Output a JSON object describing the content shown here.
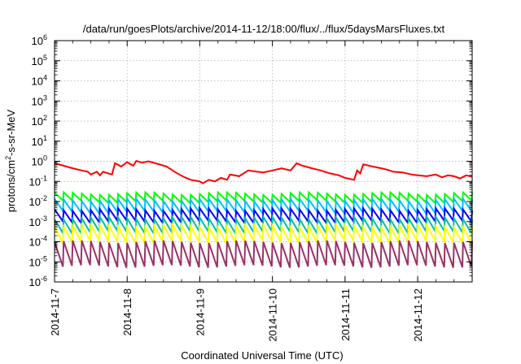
{
  "chart_data": {
    "type": "line",
    "title": "/data/run/goesPlots/archive/2014-11-12/18:00/flux/../flux/5daysMarsFluxes.txt",
    "xlabel": "Coordinated Universal Time (UTC)",
    "ylabel": {
      "pre": "protons/cm",
      "sup": "2",
      "post": "-s-sr-MeV"
    },
    "x_range": [
      "2014-11-07T00:00",
      "2014-11-12T18:00"
    ],
    "x_ticks": [
      "2014-11-7",
      "2014-11-8",
      "2014-11-9",
      "2014-11-10",
      "2014-11-11",
      "2014-11-12"
    ],
    "y_scale": "log",
    "y_range": [
      1e-06,
      1000000.0
    ],
    "y_ticks": [
      {
        "base": "10",
        "exp": "-6"
      },
      {
        "base": "10",
        "exp": "-5"
      },
      {
        "base": "10",
        "exp": "-4"
      },
      {
        "base": "10",
        "exp": "-3"
      },
      {
        "base": "10",
        "exp": "-2"
      },
      {
        "base": "10",
        "exp": "-1"
      },
      {
        "base": "10",
        "exp": "0"
      },
      {
        "base": "10",
        "exp": "1"
      },
      {
        "base": "10",
        "exp": "2"
      },
      {
        "base": "10",
        "exp": "3"
      },
      {
        "base": "10",
        "exp": "4"
      },
      {
        "base": "10",
        "exp": "5"
      },
      {
        "base": "10",
        "exp": "6"
      }
    ],
    "grid": true,
    "legend": "none",
    "series": [
      {
        "color": "#ff0000",
        "points": [
          [
            "2014-11-07T00:00",
            0.8
          ],
          [
            "2014-11-07T03:00",
            0.6
          ],
          [
            "2014-11-07T06:00",
            0.45
          ],
          [
            "2014-11-07T09:00",
            0.35
          ],
          [
            "2014-11-07T11:00",
            0.3
          ],
          [
            "2014-11-07T12:00",
            0.22
          ],
          [
            "2014-11-07T14:00",
            0.3
          ],
          [
            "2014-11-07T15:00",
            0.2
          ],
          [
            "2014-11-07T16:00",
            0.3
          ],
          [
            "2014-11-07T19:00",
            0.22
          ],
          [
            "2014-11-07T20:00",
            0.8
          ],
          [
            "2014-11-07T22:00",
            0.55
          ],
          [
            "2014-11-08T00:00",
            0.9
          ],
          [
            "2014-11-08T02:00",
            0.6
          ],
          [
            "2014-11-08T03:00",
            1.05
          ],
          [
            "2014-11-08T05:00",
            0.85
          ],
          [
            "2014-11-08T07:00",
            1.0
          ],
          [
            "2014-11-08T10:00",
            0.75
          ],
          [
            "2014-11-08T13:00",
            0.55
          ],
          [
            "2014-11-08T16:00",
            0.28
          ],
          [
            "2014-11-08T19:00",
            0.16
          ],
          [
            "2014-11-08T21:00",
            0.12
          ],
          [
            "2014-11-09T00:00",
            0.1
          ],
          [
            "2014-11-09T01:00",
            0.08
          ],
          [
            "2014-11-09T03:00",
            0.12
          ],
          [
            "2014-11-09T05:00",
            0.1
          ],
          [
            "2014-11-09T07:00",
            0.15
          ],
          [
            "2014-11-09T09:00",
            0.12
          ],
          [
            "2014-11-09T10:00",
            0.22
          ],
          [
            "2014-11-09T13:00",
            0.18
          ],
          [
            "2014-11-09T16:00",
            0.35
          ],
          [
            "2014-11-09T19:00",
            0.3
          ],
          [
            "2014-11-09T21:00",
            0.28
          ],
          [
            "2014-11-10T00:00",
            0.35
          ],
          [
            "2014-11-10T03:00",
            0.45
          ],
          [
            "2014-11-10T06:00",
            0.35
          ],
          [
            "2014-11-10T08:00",
            0.8
          ],
          [
            "2014-11-10T10:00",
            0.6
          ],
          [
            "2014-11-10T13:00",
            0.45
          ],
          [
            "2014-11-10T16:00",
            0.35
          ],
          [
            "2014-11-10T19:00",
            0.25
          ],
          [
            "2014-11-10T22:00",
            0.2
          ],
          [
            "2014-11-11T00:00",
            0.15
          ],
          [
            "2014-11-11T03:00",
            0.12
          ],
          [
            "2014-11-11T04:00",
            0.35
          ],
          [
            "2014-11-11T05:00",
            0.25
          ],
          [
            "2014-11-11T06:00",
            0.7
          ],
          [
            "2014-11-11T09:00",
            0.55
          ],
          [
            "2014-11-11T12:00",
            0.45
          ],
          [
            "2014-11-11T14:00",
            0.38
          ],
          [
            "2014-11-11T16:00",
            0.3
          ],
          [
            "2014-11-11T19:00",
            0.28
          ],
          [
            "2014-11-11T22:00",
            0.22
          ],
          [
            "2014-11-12T00:00",
            0.2
          ],
          [
            "2014-11-12T03:00",
            0.18
          ],
          [
            "2014-11-12T06:00",
            0.22
          ],
          [
            "2014-11-12T08:00",
            0.16
          ],
          [
            "2014-11-12T10:00",
            0.2
          ],
          [
            "2014-11-12T12:00",
            0.18
          ],
          [
            "2014-11-12T14:00",
            0.14
          ],
          [
            "2014-11-12T16:00",
            0.2
          ],
          [
            "2014-11-12T18:00",
            0.17
          ]
        ]
      },
      {
        "color": "#00ff00",
        "cycle_hours": 3,
        "peak": 0.025,
        "trough": 0.01
      },
      {
        "color": "#00c0ff",
        "cycle_hours": 3,
        "peak": 0.012,
        "trough": 0.003
      },
      {
        "color": "#0000ff",
        "cycle_hours": 3,
        "peak": 0.004,
        "trough": 0.001
      },
      {
        "color": "#00c0a0",
        "cycle_hours": 3,
        "peak": 0.0015,
        "trough": 0.0003
      },
      {
        "color": "#ffff00",
        "cycle_hours": 3,
        "peak": 0.0006,
        "trough": 0.0001
      },
      {
        "color": "#993366",
        "cycle_hours": 3,
        "peak": 0.0001,
        "trough": 6e-06
      }
    ]
  }
}
